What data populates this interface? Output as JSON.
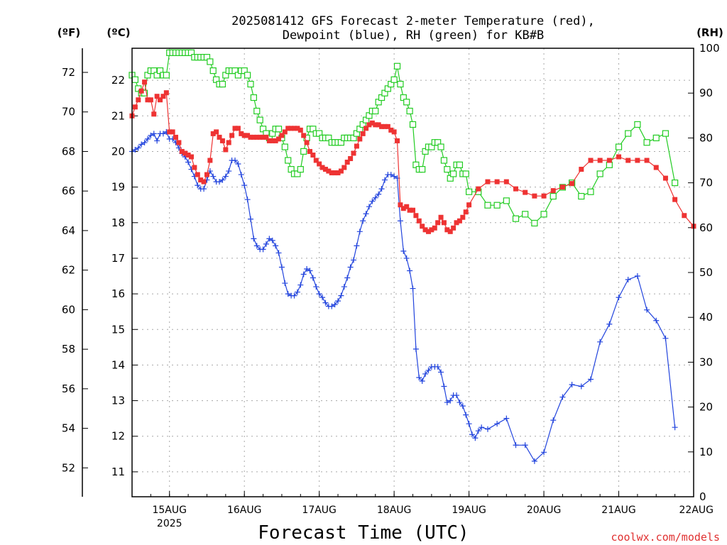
{
  "chart_data": {
    "type": "line",
    "title_line1": "2025081412 GFS Forecast 2-meter Temperature (red),",
    "title_line2": "Dewpoint (blue), RH (green) for KB#B",
    "xlabel": "Forecast Time (UTC)",
    "credit": "coolwx.com/models",
    "unit_f": "(ºF)",
    "unit_c": "(ºC)",
    "unit_rh": "(RH)",
    "x_ticks": [
      {
        "label": "15AUG",
        "sub": "2025",
        "hour": 12
      },
      {
        "label": "16AUG",
        "sub": "",
        "hour": 36
      },
      {
        "label": "17AUG",
        "sub": "",
        "hour": 60
      },
      {
        "label": "18AUG",
        "sub": "",
        "hour": 84
      },
      {
        "label": "19AUG",
        "sub": "",
        "hour": 108
      },
      {
        "label": "20AUG",
        "sub": "",
        "hour": 132
      },
      {
        "label": "21AUG",
        "sub": "",
        "hour": 156
      },
      {
        "label": "22AUG",
        "sub": "",
        "hour": 180
      }
    ],
    "xlim_hours": [
      0,
      180
    ],
    "ylim_c": [
      10.3,
      22.9
    ],
    "ylim_rh": [
      0,
      100
    ],
    "c_ticks": [
      "11",
      "12",
      "13",
      "14",
      "15",
      "16",
      "17",
      "18",
      "19",
      "20",
      "21",
      "22"
    ],
    "f_ticks": [
      "52",
      "54",
      "56",
      "58",
      "60",
      "62",
      "64",
      "66",
      "68",
      "70",
      "72"
    ],
    "rh_ticks": [
      "0",
      "10",
      "20",
      "30",
      "40",
      "50",
      "60",
      "70",
      "80",
      "90",
      "100"
    ],
    "grid": true,
    "colors": {
      "temperature": "#ee3333",
      "dewpoint": "#2244dd",
      "rh": "#22cc22"
    },
    "temperature_c": [
      [
        0,
        21.0
      ],
      [
        1,
        21.25
      ],
      [
        2,
        21.45
      ],
      [
        3,
        21.7
      ],
      [
        4,
        21.95
      ],
      [
        5,
        21.45
      ],
      [
        6,
        21.45
      ],
      [
        7,
        21.05
      ],
      [
        8,
        21.55
      ],
      [
        9,
        21.45
      ],
      [
        10,
        21.55
      ],
      [
        11,
        21.65
      ],
      [
        12,
        20.55
      ],
      [
        13,
        20.55
      ],
      [
        14,
        20.4
      ],
      [
        15,
        20.25
      ],
      [
        16,
        20.0
      ],
      [
        17,
        19.95
      ],
      [
        18,
        19.9
      ],
      [
        19,
        19.85
      ],
      [
        20,
        19.55
      ],
      [
        21,
        19.35
      ],
      [
        22,
        19.2
      ],
      [
        23,
        19.15
      ],
      [
        24,
        19.35
      ],
      [
        25,
        19.75
      ],
      [
        26,
        20.5
      ],
      [
        27,
        20.55
      ],
      [
        28,
        20.4
      ],
      [
        29,
        20.3
      ],
      [
        30,
        20.05
      ],
      [
        31,
        20.25
      ],
      [
        32,
        20.45
      ],
      [
        33,
        20.65
      ],
      [
        34,
        20.65
      ],
      [
        35,
        20.5
      ],
      [
        36,
        20.45
      ],
      [
        37,
        20.45
      ],
      [
        38,
        20.4
      ],
      [
        39,
        20.4
      ],
      [
        40,
        20.4
      ],
      [
        41,
        20.4
      ],
      [
        42,
        20.4
      ],
      [
        43,
        20.4
      ],
      [
        44,
        20.3
      ],
      [
        45,
        20.3
      ],
      [
        46,
        20.3
      ],
      [
        47,
        20.35
      ],
      [
        48,
        20.45
      ],
      [
        49,
        20.55
      ],
      [
        50,
        20.65
      ],
      [
        51,
        20.65
      ],
      [
        52,
        20.65
      ],
      [
        53,
        20.65
      ],
      [
        54,
        20.6
      ],
      [
        55,
        20.45
      ],
      [
        56,
        20.25
      ],
      [
        57,
        20.0
      ],
      [
        58,
        19.9
      ],
      [
        59,
        19.75
      ],
      [
        60,
        19.65
      ],
      [
        61,
        19.55
      ],
      [
        62,
        19.5
      ],
      [
        63,
        19.45
      ],
      [
        64,
        19.4
      ],
      [
        65,
        19.4
      ],
      [
        66,
        19.4
      ],
      [
        67,
        19.45
      ],
      [
        68,
        19.55
      ],
      [
        69,
        19.7
      ],
      [
        70,
        19.8
      ],
      [
        71,
        19.95
      ],
      [
        72,
        20.15
      ],
      [
        73,
        20.35
      ],
      [
        74,
        20.5
      ],
      [
        75,
        20.65
      ],
      [
        76,
        20.75
      ],
      [
        77,
        20.8
      ],
      [
        78,
        20.75
      ],
      [
        79,
        20.75
      ],
      [
        80,
        20.7
      ],
      [
        81,
        20.7
      ],
      [
        82,
        20.7
      ],
      [
        83,
        20.6
      ],
      [
        84,
        20.55
      ],
      [
        85,
        20.3
      ],
      [
        86,
        18.5
      ],
      [
        87,
        18.4
      ],
      [
        88,
        18.45
      ],
      [
        89,
        18.35
      ],
      [
        90,
        18.35
      ],
      [
        91,
        18.2
      ],
      [
        92,
        18.05
      ],
      [
        93,
        17.9
      ],
      [
        94,
        17.8
      ],
      [
        95,
        17.75
      ],
      [
        96,
        17.8
      ],
      [
        97,
        17.85
      ],
      [
        98,
        18.0
      ],
      [
        99,
        18.15
      ],
      [
        100,
        18.0
      ],
      [
        101,
        17.8
      ],
      [
        102,
        17.75
      ],
      [
        103,
        17.85
      ],
      [
        104,
        18.0
      ],
      [
        105,
        18.05
      ],
      [
        106,
        18.15
      ],
      [
        107,
        18.3
      ],
      [
        108,
        18.5
      ],
      [
        111,
        18.95
      ],
      [
        114,
        19.15
      ],
      [
        117,
        19.15
      ],
      [
        120,
        19.15
      ],
      [
        123,
        18.95
      ],
      [
        126,
        18.85
      ],
      [
        129,
        18.75
      ],
      [
        132,
        18.75
      ],
      [
        135,
        18.9
      ],
      [
        138,
        19.0
      ],
      [
        141,
        19.1
      ],
      [
        144,
        19.5
      ],
      [
        147,
        19.75
      ],
      [
        150,
        19.75
      ],
      [
        153,
        19.75
      ],
      [
        156,
        19.85
      ],
      [
        159,
        19.75
      ],
      [
        162,
        19.75
      ],
      [
        165,
        19.75
      ],
      [
        168,
        19.55
      ],
      [
        171,
        19.25
      ],
      [
        174,
        18.65
      ],
      [
        177,
        18.2
      ],
      [
        180,
        17.9
      ]
    ],
    "dewpoint_c": [
      [
        0,
        20.0
      ],
      [
        1,
        20.05
      ],
      [
        2,
        20.1
      ],
      [
        3,
        20.2
      ],
      [
        4,
        20.25
      ],
      [
        5,
        20.35
      ],
      [
        6,
        20.45
      ],
      [
        7,
        20.5
      ],
      [
        8,
        20.3
      ],
      [
        9,
        20.5
      ],
      [
        10,
        20.5
      ],
      [
        11,
        20.55
      ],
      [
        12,
        20.35
      ],
      [
        13,
        20.35
      ],
      [
        14,
        20.25
      ],
      [
        15,
        20.1
      ],
      [
        16,
        19.95
      ],
      [
        17,
        19.85
      ],
      [
        18,
        19.7
      ],
      [
        19,
        19.5
      ],
      [
        20,
        19.3
      ],
      [
        21,
        19.05
      ],
      [
        22,
        18.95
      ],
      [
        23,
        18.95
      ],
      [
        24,
        19.2
      ],
      [
        25,
        19.45
      ],
      [
        26,
        19.3
      ],
      [
        27,
        19.15
      ],
      [
        28,
        19.15
      ],
      [
        29,
        19.2
      ],
      [
        30,
        19.3
      ],
      [
        31,
        19.45
      ],
      [
        32,
        19.75
      ],
      [
        33,
        19.75
      ],
      [
        34,
        19.65
      ],
      [
        35,
        19.35
      ],
      [
        36,
        19.05
      ],
      [
        37,
        18.65
      ],
      [
        38,
        18.1
      ],
      [
        39,
        17.55
      ],
      [
        40,
        17.35
      ],
      [
        41,
        17.25
      ],
      [
        42,
        17.25
      ],
      [
        43,
        17.4
      ],
      [
        44,
        17.55
      ],
      [
        45,
        17.5
      ],
      [
        46,
        17.35
      ],
      [
        47,
        17.15
      ],
      [
        48,
        16.75
      ],
      [
        49,
        16.3
      ],
      [
        50,
        16.0
      ],
      [
        51,
        15.95
      ],
      [
        52,
        15.95
      ],
      [
        53,
        16.05
      ],
      [
        54,
        16.25
      ],
      [
        55,
        16.55
      ],
      [
        56,
        16.7
      ],
      [
        57,
        16.65
      ],
      [
        58,
        16.45
      ],
      [
        59,
        16.2
      ],
      [
        60,
        16.0
      ],
      [
        61,
        15.9
      ],
      [
        62,
        15.75
      ],
      [
        63,
        15.65
      ],
      [
        64,
        15.65
      ],
      [
        65,
        15.7
      ],
      [
        66,
        15.8
      ],
      [
        67,
        15.95
      ],
      [
        68,
        16.2
      ],
      [
        69,
        16.45
      ],
      [
        70,
        16.75
      ],
      [
        71,
        16.95
      ],
      [
        72,
        17.35
      ],
      [
        73,
        17.75
      ],
      [
        74,
        18.05
      ],
      [
        75,
        18.25
      ],
      [
        76,
        18.45
      ],
      [
        77,
        18.6
      ],
      [
        78,
        18.7
      ],
      [
        79,
        18.8
      ],
      [
        80,
        18.95
      ],
      [
        81,
        19.2
      ],
      [
        82,
        19.35
      ],
      [
        83,
        19.35
      ],
      [
        84,
        19.3
      ],
      [
        85,
        19.25
      ],
      [
        86,
        18.05
      ],
      [
        87,
        17.2
      ],
      [
        88,
        17.0
      ],
      [
        89,
        16.65
      ],
      [
        90,
        16.15
      ],
      [
        91,
        14.45
      ],
      [
        92,
        13.65
      ],
      [
        93,
        13.55
      ],
      [
        94,
        13.75
      ],
      [
        95,
        13.85
      ],
      [
        96,
        13.95
      ],
      [
        97,
        13.95
      ],
      [
        98,
        13.95
      ],
      [
        99,
        13.8
      ],
      [
        100,
        13.4
      ],
      [
        101,
        12.95
      ],
      [
        102,
        13.0
      ],
      [
        103,
        13.15
      ],
      [
        104,
        13.15
      ],
      [
        105,
        12.95
      ],
      [
        106,
        12.85
      ],
      [
        107,
        12.6
      ],
      [
        108,
        12.35
      ],
      [
        109,
        12.05
      ],
      [
        110,
        11.95
      ],
      [
        111,
        12.15
      ],
      [
        112,
        12.25
      ],
      [
        114,
        12.2
      ],
      [
        117,
        12.35
      ],
      [
        120,
        12.5
      ],
      [
        123,
        11.75
      ],
      [
        126,
        11.75
      ],
      [
        129,
        11.3
      ],
      [
        132,
        11.55
      ],
      [
        135,
        12.45
      ],
      [
        138,
        13.1
      ],
      [
        141,
        13.45
      ],
      [
        144,
        13.4
      ],
      [
        147,
        13.6
      ],
      [
        150,
        14.65
      ],
      [
        153,
        15.15
      ],
      [
        156,
        15.9
      ],
      [
        159,
        16.4
      ],
      [
        162,
        16.5
      ],
      [
        165,
        15.55
      ],
      [
        168,
        15.25
      ],
      [
        171,
        14.75
      ],
      [
        174,
        12.25
      ]
    ],
    "rh_pct": [
      [
        0,
        94
      ],
      [
        1,
        93
      ],
      [
        2,
        91
      ],
      [
        3,
        90
      ],
      [
        4,
        90
      ],
      [
        5,
        94
      ],
      [
        6,
        95
      ],
      [
        7,
        95
      ],
      [
        8,
        94
      ],
      [
        9,
        95
      ],
      [
        10,
        94
      ],
      [
        11,
        94
      ],
      [
        12,
        99
      ],
      [
        13,
        99
      ],
      [
        14,
        99
      ],
      [
        15,
        99
      ],
      [
        16,
        99
      ],
      [
        17,
        99
      ],
      [
        18,
        99
      ],
      [
        19,
        99
      ],
      [
        20,
        98
      ],
      [
        21,
        98
      ],
      [
        22,
        98
      ],
      [
        23,
        98
      ],
      [
        24,
        98
      ],
      [
        25,
        97
      ],
      [
        26,
        95
      ],
      [
        27,
        93
      ],
      [
        28,
        92
      ],
      [
        29,
        92
      ],
      [
        30,
        94
      ],
      [
        31,
        95
      ],
      [
        32,
        95
      ],
      [
        33,
        95
      ],
      [
        34,
        94
      ],
      [
        35,
        95
      ],
      [
        36,
        95
      ],
      [
        37,
        94
      ],
      [
        38,
        92
      ],
      [
        39,
        89
      ],
      [
        40,
        86
      ],
      [
        41,
        84
      ],
      [
        42,
        82
      ],
      [
        43,
        81
      ],
      [
        44,
        80
      ],
      [
        45,
        81
      ],
      [
        46,
        82
      ],
      [
        47,
        82
      ],
      [
        48,
        80
      ],
      [
        49,
        78
      ],
      [
        50,
        75
      ],
      [
        51,
        73
      ],
      [
        52,
        72
      ],
      [
        53,
        72
      ],
      [
        54,
        73
      ],
      [
        55,
        77
      ],
      [
        56,
        80
      ],
      [
        57,
        82
      ],
      [
        58,
        82
      ],
      [
        59,
        81
      ],
      [
        60,
        81
      ],
      [
        61,
        80
      ],
      [
        62,
        80
      ],
      [
        63,
        80
      ],
      [
        64,
        79
      ],
      [
        65,
        79
      ],
      [
        66,
        79
      ],
      [
        67,
        79
      ],
      [
        68,
        80
      ],
      [
        69,
        80
      ],
      [
        70,
        80
      ],
      [
        71,
        80
      ],
      [
        72,
        81
      ],
      [
        73,
        82
      ],
      [
        74,
        83
      ],
      [
        75,
        84
      ],
      [
        76,
        85
      ],
      [
        77,
        86
      ],
      [
        78,
        86
      ],
      [
        79,
        88
      ],
      [
        80,
        89
      ],
      [
        81,
        90
      ],
      [
        82,
        91
      ],
      [
        83,
        92
      ],
      [
        84,
        93
      ],
      [
        85,
        96
      ],
      [
        86,
        92
      ],
      [
        87,
        89
      ],
      [
        88,
        88
      ],
      [
        89,
        86
      ],
      [
        90,
        83
      ],
      [
        91,
        74
      ],
      [
        92,
        73
      ],
      [
        93,
        73
      ],
      [
        94,
        77
      ],
      [
        95,
        78
      ],
      [
        96,
        78
      ],
      [
        97,
        79
      ],
      [
        98,
        79
      ],
      [
        99,
        78
      ],
      [
        100,
        75
      ],
      [
        101,
        73
      ],
      [
        102,
        71
      ],
      [
        103,
        72
      ],
      [
        104,
        74
      ],
      [
        105,
        74
      ],
      [
        106,
        72
      ],
      [
        107,
        72
      ],
      [
        108,
        68
      ],
      [
        111,
        68
      ],
      [
        114,
        65
      ],
      [
        117,
        65
      ],
      [
        120,
        66
      ],
      [
        123,
        62
      ],
      [
        126,
        63
      ],
      [
        129,
        61
      ],
      [
        132,
        63
      ],
      [
        135,
        67
      ],
      [
        138,
        69
      ],
      [
        141,
        70
      ],
      [
        144,
        67
      ],
      [
        147,
        68
      ],
      [
        150,
        72
      ],
      [
        153,
        74
      ],
      [
        156,
        78
      ],
      [
        159,
        81
      ],
      [
        162,
        83
      ],
      [
        165,
        79
      ],
      [
        168,
        80
      ],
      [
        171,
        81
      ],
      [
        174,
        70
      ]
    ]
  }
}
